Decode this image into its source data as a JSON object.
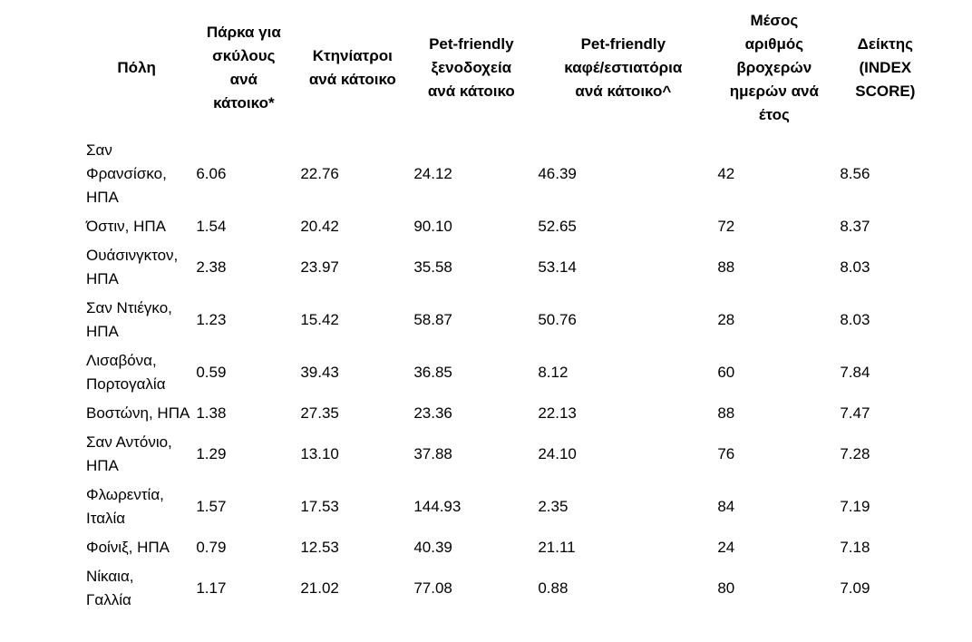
{
  "colors": {
    "text": "#000000",
    "background": "#ffffff"
  },
  "table": {
    "headers": {
      "city": "Πόλη",
      "dog_parks": "Πάρκα για\nσκύλους\nανά\nκάτοικο*",
      "vets": "Κτηνίατροι\nανά κάτοικο",
      "hotels": "Pet-friendly\nξενοδοχεία\nανά κάτοικο",
      "cafes": "Pet-friendly\nκαφέ/εστιατόρια\nανά κάτοικο^",
      "rainy_days": "Μέσος\nαριθμός\nβροχερών\nημερών ανά\nέτος",
      "index_score": "Δείκτης\n(INDEX\nSCORE)"
    },
    "rows": [
      [
        "Σαν\nΦρανσίσκο,\nΗΠΑ",
        "6.06",
        "22.76",
        "24.12",
        "46.39",
        "42",
        "8.56"
      ],
      [
        "Όστιν, ΗΠΑ",
        "1.54",
        "20.42",
        "90.10",
        "52.65",
        "72",
        "8.37"
      ],
      [
        "Ουάσινγκτον,\nΗΠΑ",
        "2.38",
        "23.97",
        "35.58",
        "53.14",
        "88",
        "8.03"
      ],
      [
        "Σαν Ντιέγκο,\nΗΠΑ",
        "1.23",
        "15.42",
        "58.87",
        "50.76",
        "28",
        "8.03"
      ],
      [
        "Λισαβόνα,\nΠορτογαλία",
        "0.59",
        "39.43",
        "36.85",
        "8.12",
        "60",
        "7.84"
      ],
      [
        "Βοστώνη, ΗΠΑ",
        "1.38",
        "27.35",
        "23.36",
        "22.13",
        "88",
        "7.47"
      ],
      [
        "Σαν Αντόνιο,\nΗΠΑ",
        "1.29",
        "13.10",
        "37.88",
        "24.10",
        "76",
        "7.28"
      ],
      [
        "Φλωρεντία,\nΙταλία",
        "1.57",
        "17.53",
        "144.93",
        "2.35",
        "84",
        "7.19"
      ],
      [
        "Φοίνιξ, ΗΠΑ",
        "0.79",
        "12.53",
        "40.39",
        "21.11",
        "24",
        "7.18"
      ],
      [
        "Νίκαια,\nΓαλλία",
        "1.17",
        "21.02",
        "77.08",
        "0.88",
        "80",
        "7.09"
      ]
    ]
  }
}
